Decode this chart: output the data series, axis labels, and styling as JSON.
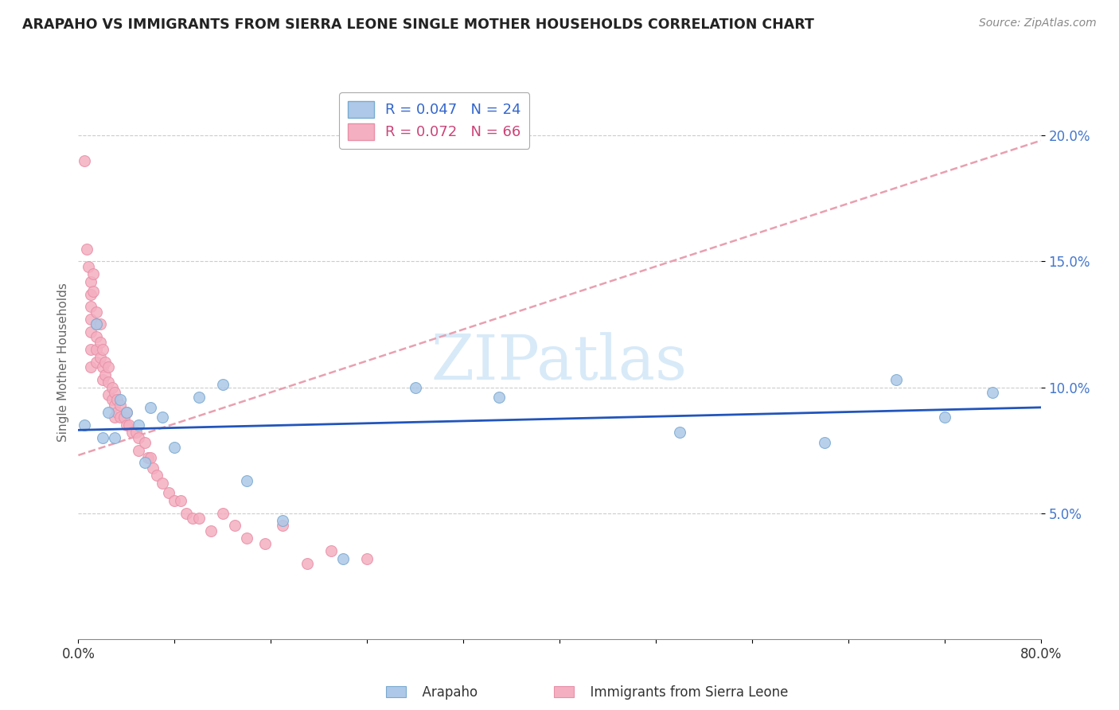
{
  "title": "ARAPAHO VS IMMIGRANTS FROM SIERRA LEONE SINGLE MOTHER HOUSEHOLDS CORRELATION CHART",
  "source": "Source: ZipAtlas.com",
  "ylabel": "Single Mother Households",
  "arapaho_color": "#adc8e8",
  "arapaho_edge": "#7aaad0",
  "sierra_leone_color": "#f4afc0",
  "sierra_leone_edge": "#e890a8",
  "trendline_arapaho_color": "#2255bb",
  "trendline_sierra_leone_color": "#e8a0b0",
  "watermark_color": "#d8eaf8",
  "xlim": [
    0.0,
    0.8
  ],
  "ylim": [
    0.0,
    0.22
  ],
  "yticks": [
    0.05,
    0.1,
    0.15,
    0.2
  ],
  "ytick_labels": [
    "5.0%",
    "10.0%",
    "15.0%",
    "20.0%"
  ],
  "arapaho_x": [
    0.005,
    0.015,
    0.02,
    0.025,
    0.03,
    0.035,
    0.04,
    0.05,
    0.055,
    0.06,
    0.07,
    0.08,
    0.1,
    0.12,
    0.14,
    0.17,
    0.22,
    0.28,
    0.35,
    0.5,
    0.62,
    0.68,
    0.72,
    0.76
  ],
  "arapaho_y": [
    0.085,
    0.125,
    0.08,
    0.09,
    0.08,
    0.095,
    0.09,
    0.085,
    0.07,
    0.092,
    0.088,
    0.076,
    0.096,
    0.101,
    0.063,
    0.047,
    0.032,
    0.1,
    0.096,
    0.082,
    0.078,
    0.103,
    0.088,
    0.098
  ],
  "sierra_leone_x": [
    0.005,
    0.007,
    0.008,
    0.01,
    0.01,
    0.01,
    0.01,
    0.01,
    0.01,
    0.01,
    0.012,
    0.012,
    0.015,
    0.015,
    0.015,
    0.015,
    0.015,
    0.018,
    0.018,
    0.018,
    0.02,
    0.02,
    0.02,
    0.022,
    0.022,
    0.025,
    0.025,
    0.025,
    0.028,
    0.028,
    0.03,
    0.03,
    0.03,
    0.032,
    0.032,
    0.035,
    0.035,
    0.038,
    0.04,
    0.04,
    0.042,
    0.045,
    0.048,
    0.05,
    0.05,
    0.055,
    0.058,
    0.06,
    0.062,
    0.065,
    0.07,
    0.075,
    0.08,
    0.085,
    0.09,
    0.095,
    0.1,
    0.11,
    0.12,
    0.13,
    0.14,
    0.155,
    0.17,
    0.19,
    0.21,
    0.24
  ],
  "sierra_leone_y": [
    0.19,
    0.155,
    0.148,
    0.142,
    0.137,
    0.132,
    0.127,
    0.122,
    0.115,
    0.108,
    0.145,
    0.138,
    0.13,
    0.125,
    0.12,
    0.115,
    0.11,
    0.125,
    0.118,
    0.112,
    0.115,
    0.108,
    0.103,
    0.11,
    0.105,
    0.108,
    0.102,
    0.097,
    0.1,
    0.095,
    0.098,
    0.093,
    0.088,
    0.095,
    0.09,
    0.093,
    0.088,
    0.088,
    0.09,
    0.085,
    0.085,
    0.082,
    0.082,
    0.08,
    0.075,
    0.078,
    0.072,
    0.072,
    0.068,
    0.065,
    0.062,
    0.058,
    0.055,
    0.055,
    0.05,
    0.048,
    0.048,
    0.043,
    0.05,
    0.045,
    0.04,
    0.038,
    0.045,
    0.03,
    0.035,
    0.032
  ],
  "trendline_sl_x0": 0.0,
  "trendline_sl_y0": 0.073,
  "trendline_sl_x1": 0.8,
  "trendline_sl_y1": 0.198,
  "trendline_ara_x0": 0.0,
  "trendline_ara_y0": 0.083,
  "trendline_ara_x1": 0.8,
  "trendline_ara_y1": 0.092
}
